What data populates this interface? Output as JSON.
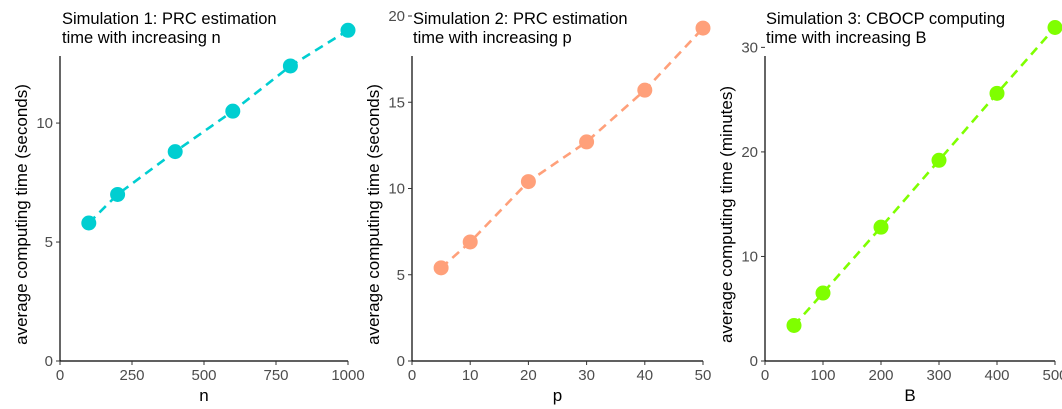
{
  "chart_data": [
    {
      "type": "scatter",
      "title_lines": [
        "Simulation 1: PRC estimation",
        "time with increasing n"
      ],
      "xlabel": "n",
      "ylabel": "average computing time (seconds)",
      "x": [
        100,
        200,
        400,
        600,
        800,
        1000
      ],
      "y": [
        5.8,
        7.0,
        8.8,
        10.5,
        12.4,
        13.9
      ],
      "xlim": [
        0,
        1000
      ],
      "ylim": [
        0,
        14.5
      ],
      "xticks": [
        0,
        250,
        500,
        750,
        1000
      ],
      "xtick_labels": [
        "0",
        "250",
        "500",
        "750",
        "1000"
      ],
      "yticks": [
        0,
        5,
        10
      ],
      "ytick_labels": [
        "0",
        "5",
        "10"
      ],
      "color": "#00CED1",
      "line_style": "dashed",
      "grid": false,
      "legend": "none"
    },
    {
      "type": "scatter",
      "title_lines": [
        "Simulation 2: PRC estimation",
        "time with increasing p"
      ],
      "xlabel": "p",
      "ylabel": "average computing time (seconds)",
      "x": [
        5,
        10,
        20,
        30,
        40,
        50
      ],
      "y": [
        5.4,
        6.9,
        10.4,
        12.7,
        15.7,
        19.3
      ],
      "xlim": [
        0,
        50
      ],
      "ylim": [
        0,
        20
      ],
      "xticks": [
        0,
        10,
        20,
        30,
        40,
        50
      ],
      "xtick_labels": [
        "0",
        "10",
        "20",
        "30",
        "40",
        "50"
      ],
      "yticks": [
        0,
        5,
        10,
        15,
        20
      ],
      "ytick_labels": [
        "0",
        "5",
        "10",
        "15",
        "20"
      ],
      "color": "#FFA07A",
      "line_style": "dashed",
      "grid": false,
      "legend": "none"
    },
    {
      "type": "scatter",
      "title_lines": [
        "Simulation 3: CBOCP computing",
        "time with increasing B"
      ],
      "xlabel": "B",
      "ylabel": "average computing time (minutes)",
      "x": [
        50,
        100,
        200,
        300,
        400,
        500
      ],
      "y": [
        3.4,
        6.5,
        12.8,
        19.2,
        25.6,
        31.9
      ],
      "xlim": [
        0,
        500
      ],
      "ylim": [
        0,
        33
      ],
      "xticks": [
        0,
        100,
        200,
        300,
        400,
        500
      ],
      "xtick_labels": [
        "0",
        "100",
        "200",
        "300",
        "400",
        "500"
      ],
      "yticks": [
        0,
        10,
        20,
        30
      ],
      "ytick_labels": [
        "0",
        "10",
        "20",
        "30"
      ],
      "color": "#7FFF00",
      "line_style": "dashed",
      "grid": false,
      "legend": "none"
    }
  ]
}
